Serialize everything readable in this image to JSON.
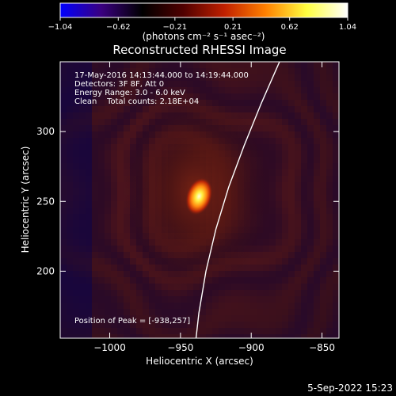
{
  "chart_data": {
    "type": "heatmap",
    "title": "Reconstructed RHESSI Image",
    "xlabel": "Heliocentric X (arcsec)",
    "ylabel": "Heliocentric Y (arcsec)",
    "xlim": [
      -1035,
      -838
    ],
    "ylim": [
      152,
      350
    ],
    "x_ticks": [
      -1000,
      -950,
      -900,
      -850
    ],
    "y_ticks": [
      200,
      250,
      300
    ],
    "x_tick_labels": [
      "−1000",
      "−950",
      "−900",
      "−850"
    ],
    "y_tick_labels": [
      "200",
      "250",
      "300"
    ],
    "colorbar": {
      "min": -1.04,
      "max": 1.04,
      "tick_values": [
        -1.04,
        -0.62,
        -0.21,
        0.21,
        0.62,
        1.04
      ],
      "tick_labels": [
        "−1.04",
        "−0.62",
        "−0.21",
        "0.21",
        "0.62",
        "1.04"
      ],
      "unit_label": "(photons cm⁻² s⁻¹ asec⁻²)",
      "colors": [
        "#0000ff",
        "#3a0080",
        "#000000",
        "#500000",
        "#c02000",
        "#ff8000",
        "#ffff40",
        "#ffffff"
      ]
    },
    "info_lines": [
      "17-May-2016 14:13:44.000 to 14:19:44.000",
      "Detectors: 3F 8F, Att 0",
      "Energy Range: 3.0 - 6.0 keV",
      "Clean    Total counts: 2.18E+04"
    ],
    "peak_label": "Position of Peak = [-938,257]",
    "peak": {
      "x": -938,
      "y": 257
    },
    "limb": [
      {
        "x": -880,
        "y": 350
      },
      {
        "x": -893,
        "y": 320
      },
      {
        "x": -905,
        "y": 290
      },
      {
        "x": -916,
        "y": 260
      },
      {
        "x": -925,
        "y": 230
      },
      {
        "x": -932,
        "y": 200
      },
      {
        "x": -937,
        "y": 170
      },
      {
        "x": -939,
        "y": 152
      }
    ]
  },
  "footer": {
    "date": "5-Sep-2022 15:23"
  }
}
